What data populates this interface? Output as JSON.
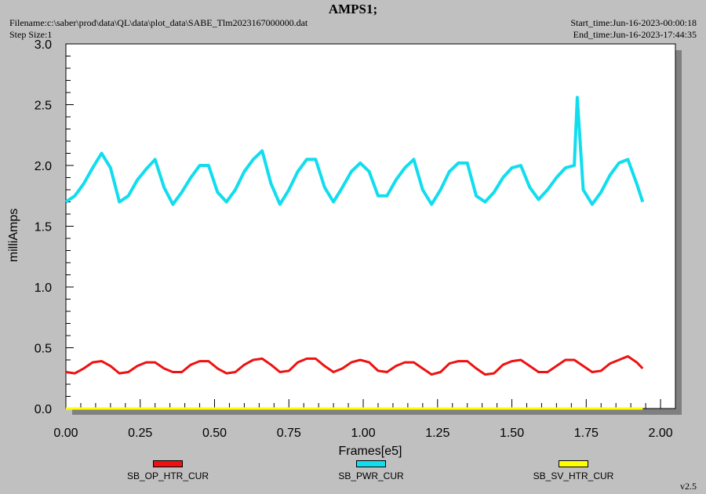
{
  "header": {
    "title": "AMPS1;",
    "filename": "Filename:c:\\saber\\prod\\data\\QL\\data\\plot_data\\SABE_Tlm2023167000000.dat",
    "step_size": "Step Size:1",
    "start_time": "Start_time:Jun-16-2023-00:00:18",
    "end_time": "End_time:Jun-16-2023-17:44:35"
  },
  "version": "v2.5",
  "colors": {
    "background": "#c0c0c0",
    "plot_area": "#ffffff",
    "shadow": "#808080"
  },
  "chart_data": {
    "type": "line",
    "title": "AMPS1;",
    "xlabel": "Frames[e5]",
    "ylabel": "milliAmps",
    "xlim": [
      0,
      2.05
    ],
    "ylim": [
      0,
      3
    ],
    "grid": false,
    "legend_position": "bottom",
    "x_ticks": [
      "0.00",
      "0.25",
      "0.50",
      "0.75",
      "1.00",
      "1.25",
      "1.50",
      "1.75",
      "2.00"
    ],
    "y_ticks": [
      "0.0",
      "0.5",
      "1.0",
      "1.5",
      "2.0",
      "2.5",
      "3.0"
    ],
    "series": [
      {
        "name": "SB_OP_HTR_CUR",
        "color": "#ee1111",
        "x": [
          0.0,
          0.03,
          0.06,
          0.09,
          0.12,
          0.15,
          0.18,
          0.21,
          0.24,
          0.27,
          0.3,
          0.33,
          0.36,
          0.39,
          0.42,
          0.45,
          0.48,
          0.51,
          0.54,
          0.57,
          0.6,
          0.63,
          0.66,
          0.69,
          0.72,
          0.75,
          0.78,
          0.81,
          0.84,
          0.87,
          0.9,
          0.93,
          0.96,
          0.99,
          1.02,
          1.05,
          1.08,
          1.11,
          1.14,
          1.17,
          1.2,
          1.23,
          1.26,
          1.29,
          1.32,
          1.35,
          1.38,
          1.41,
          1.44,
          1.47,
          1.5,
          1.53,
          1.56,
          1.59,
          1.62,
          1.65,
          1.68,
          1.71,
          1.74,
          1.77,
          1.8,
          1.83,
          1.86,
          1.89,
          1.92,
          1.94
        ],
        "values": [
          0.3,
          0.29,
          0.33,
          0.38,
          0.39,
          0.35,
          0.29,
          0.3,
          0.35,
          0.38,
          0.38,
          0.33,
          0.3,
          0.3,
          0.36,
          0.39,
          0.39,
          0.33,
          0.29,
          0.3,
          0.36,
          0.4,
          0.41,
          0.36,
          0.3,
          0.31,
          0.38,
          0.41,
          0.41,
          0.35,
          0.3,
          0.33,
          0.38,
          0.4,
          0.38,
          0.31,
          0.3,
          0.35,
          0.38,
          0.38,
          0.33,
          0.28,
          0.3,
          0.37,
          0.39,
          0.39,
          0.33,
          0.28,
          0.29,
          0.36,
          0.39,
          0.4,
          0.35,
          0.3,
          0.3,
          0.35,
          0.4,
          0.4,
          0.35,
          0.3,
          0.31,
          0.37,
          0.4,
          0.43,
          0.38,
          0.33
        ]
      },
      {
        "name": "SB_PWR_CUR",
        "color": "#11ddee",
        "x": [
          0.0,
          0.03,
          0.06,
          0.09,
          0.12,
          0.15,
          0.18,
          0.21,
          0.24,
          0.27,
          0.3,
          0.33,
          0.36,
          0.39,
          0.42,
          0.45,
          0.48,
          0.51,
          0.54,
          0.57,
          0.6,
          0.63,
          0.66,
          0.69,
          0.72,
          0.75,
          0.78,
          0.81,
          0.84,
          0.87,
          0.9,
          0.93,
          0.96,
          0.99,
          1.02,
          1.05,
          1.08,
          1.11,
          1.14,
          1.17,
          1.2,
          1.23,
          1.26,
          1.29,
          1.32,
          1.35,
          1.38,
          1.41,
          1.44,
          1.47,
          1.5,
          1.53,
          1.56,
          1.59,
          1.62,
          1.65,
          1.68,
          1.71,
          1.72,
          1.74,
          1.77,
          1.8,
          1.83,
          1.86,
          1.89,
          1.92,
          1.94
        ],
        "values": [
          1.7,
          1.75,
          1.85,
          1.98,
          2.1,
          1.98,
          1.7,
          1.75,
          1.88,
          1.97,
          2.05,
          1.82,
          1.68,
          1.78,
          1.9,
          2.0,
          2.0,
          1.78,
          1.7,
          1.8,
          1.95,
          2.05,
          2.12,
          1.85,
          1.68,
          1.8,
          1.95,
          2.05,
          2.05,
          1.82,
          1.7,
          1.82,
          1.95,
          2.02,
          1.95,
          1.75,
          1.75,
          1.88,
          1.98,
          2.05,
          1.8,
          1.68,
          1.8,
          1.95,
          2.02,
          2.02,
          1.75,
          1.7,
          1.78,
          1.9,
          1.98,
          2.0,
          1.82,
          1.72,
          1.8,
          1.9,
          1.98,
          2.0,
          2.56,
          1.8,
          1.68,
          1.78,
          1.92,
          2.02,
          2.05,
          1.85,
          1.7
        ]
      },
      {
        "name": "SB_SV_HTR_CUR",
        "color": "#ffff00",
        "x": [
          0.0,
          1.94
        ],
        "values": [
          0.0,
          0.0
        ]
      }
    ]
  }
}
